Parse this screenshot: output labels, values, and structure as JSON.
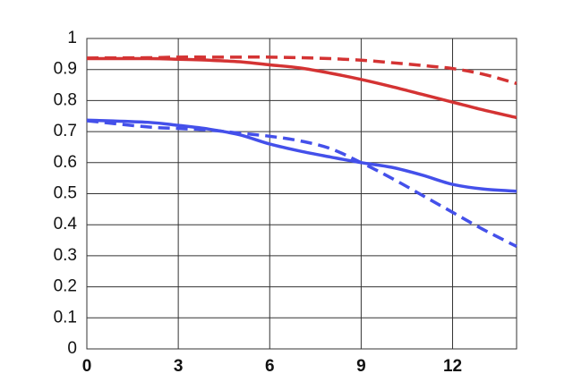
{
  "chart_data": {
    "type": "line",
    "x": [
      0,
      2,
      3,
      4,
      5,
      6,
      7,
      8,
      9,
      10,
      11,
      12,
      13,
      14.1
    ],
    "series": [
      {
        "color": "#d43333",
        "style": "solid",
        "values": [
          0.935,
          0.935,
          0.933,
          0.93,
          0.925,
          0.915,
          0.905,
          0.888,
          0.868,
          0.845,
          0.82,
          0.795,
          0.77,
          0.745
        ]
      },
      {
        "color": "#d43333",
        "style": "dashed",
        "values": [
          0.937,
          0.938,
          0.94,
          0.94,
          0.94,
          0.94,
          0.938,
          0.935,
          0.93,
          0.922,
          0.913,
          0.903,
          0.885,
          0.855
        ]
      },
      {
        "color": "#4450ea",
        "style": "solid",
        "values": [
          0.737,
          0.73,
          0.72,
          0.708,
          0.69,
          0.66,
          0.637,
          0.618,
          0.6,
          0.585,
          0.56,
          0.53,
          0.515,
          0.508
        ]
      },
      {
        "color": "#4450ea",
        "style": "dashed",
        "values": [
          0.735,
          0.715,
          0.71,
          0.705,
          0.695,
          0.685,
          0.67,
          0.645,
          0.6,
          0.55,
          0.495,
          0.44,
          0.385,
          0.33
        ]
      }
    ],
    "xlim": [
      0,
      14.1
    ],
    "xticks": [
      0,
      3,
      6,
      9,
      12
    ],
    "ylim": [
      0,
      1
    ],
    "yticks": [
      0,
      0.1,
      0.2,
      0.3,
      0.4,
      0.5,
      0.6,
      0.7,
      0.8,
      0.9,
      1
    ],
    "grid": true
  }
}
